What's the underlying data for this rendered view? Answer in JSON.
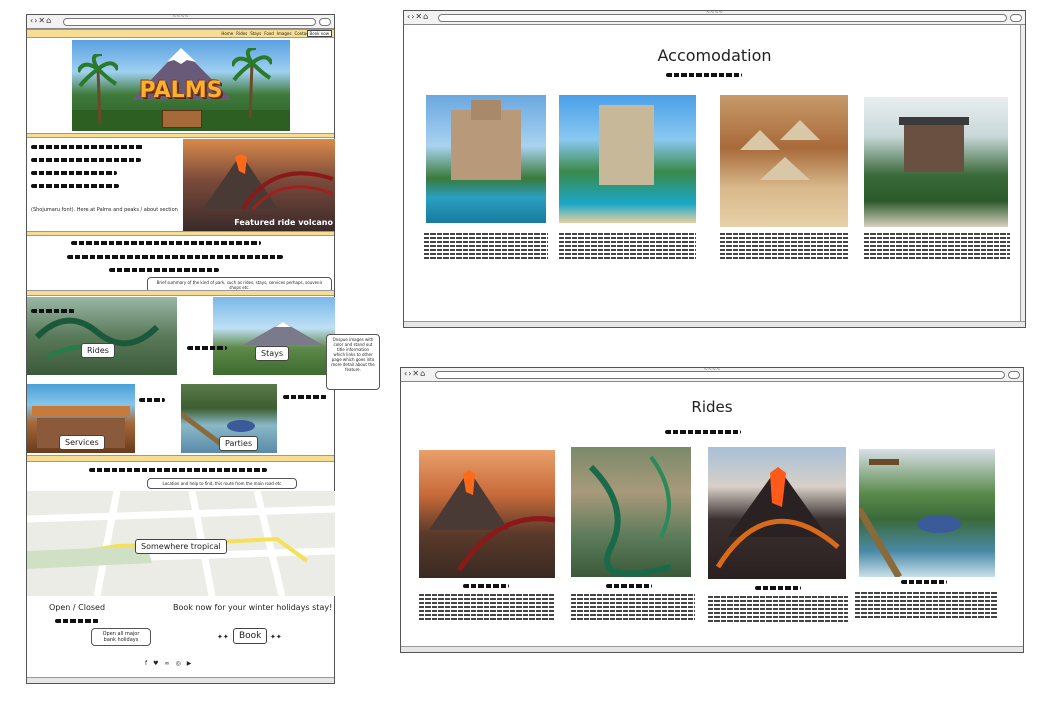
{
  "left_window": {
    "tab_title": "~~~~",
    "nav": {
      "items": [
        "Home",
        "Rides",
        "Stays",
        "Food",
        "Images",
        "Contact"
      ],
      "book_label": "Book now"
    },
    "hero": {
      "logo_text": "PALMS"
    },
    "about": {
      "caption": "(Shojumaru font). Here at Palms and peaks / about section",
      "featured_label": "Featured ride volcano"
    },
    "summary": {
      "note": "Brief summary of the kind of park, such as rides, stays, services perhaps, souvenir shops etc."
    },
    "tiles": {
      "rides_label": "Rides",
      "stays_label": "Stays",
      "services_label": "Services",
      "parties_label": "Parties"
    },
    "side_note": "Onspue images with color and stand out title information which links to other page which goes into more detail about the feature.",
    "map": {
      "note": "Location and help to find, this route from the main road etc",
      "pin_label": "Somewhere tropical"
    },
    "footer": {
      "open_closed": "Open / Closed",
      "open_note": "Open all major bank holidays",
      "book_cta": "Book now for your winter holidays stay!",
      "book_button": "Book",
      "social_icons": [
        "facebook-icon",
        "twitter-icon",
        "tripadvisor-icon",
        "instagram-icon",
        "youtube-icon"
      ]
    }
  },
  "accommodation_window": {
    "title": "Accomodation",
    "cards": [
      {
        "image": "beach-tower-hotel"
      },
      {
        "image": "pool-resort-hotel"
      },
      {
        "image": "cliff-huts"
      },
      {
        "image": "jungle-villa"
      }
    ]
  },
  "rides_window": {
    "title": "Rides",
    "cards": [
      {
        "image": "volcano-coaster"
      },
      {
        "image": "serpent-coaster"
      },
      {
        "image": "lava-mountain-coaster"
      },
      {
        "image": "water-flume"
      }
    ]
  },
  "colors": {
    "nav_band": "#f6dd91",
    "border": "#555555"
  }
}
